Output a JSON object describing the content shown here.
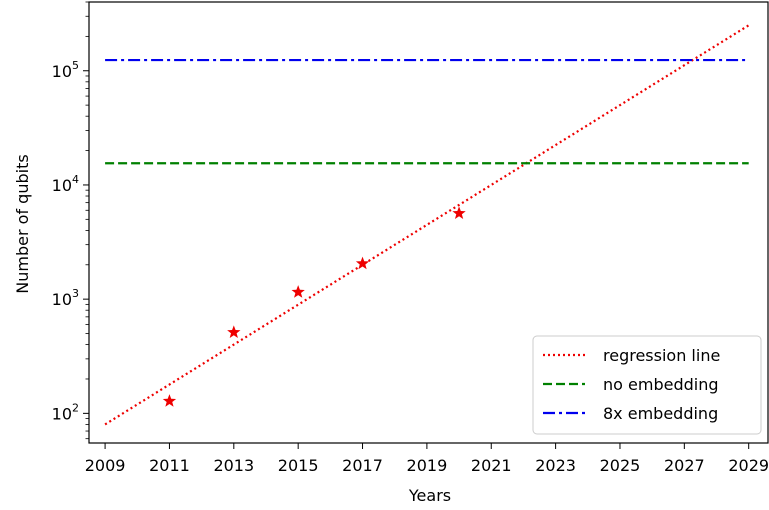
{
  "chart_data": {
    "type": "line",
    "title": "",
    "xlabel": "Years",
    "ylabel": "Number of qubits",
    "xlim": [
      2008.5,
      2029.6
    ],
    "ylim": [
      55,
      400000
    ],
    "yscale": "log",
    "grid": false,
    "legend_position": "bottom-right",
    "xticks": [
      {
        "value": 2009,
        "label": "2009"
      },
      {
        "value": 2011,
        "label": "2011"
      },
      {
        "value": 2013,
        "label": "2013"
      },
      {
        "value": 2015,
        "label": "2015"
      },
      {
        "value": 2017,
        "label": "2017"
      },
      {
        "value": 2019,
        "label": "2019"
      },
      {
        "value": 2021,
        "label": "2021"
      },
      {
        "value": 2023,
        "label": "2023"
      },
      {
        "value": 2025,
        "label": "2025"
      },
      {
        "value": 2027,
        "label": "2027"
      },
      {
        "value": 2029,
        "label": "2029"
      }
    ],
    "yticks": [
      {
        "value": 100,
        "base": "10",
        "exp": "2"
      },
      {
        "value": 1000,
        "base": "10",
        "exp": "3"
      },
      {
        "value": 10000,
        "base": "10",
        "exp": "4"
      },
      {
        "value": 100000,
        "base": "10",
        "exp": "5"
      }
    ],
    "points": {
      "name": "",
      "color": "#ee0000",
      "marker": "star",
      "x": [
        2011,
        2013,
        2015,
        2017,
        2020
      ],
      "y": [
        128,
        512,
        1152,
        2048,
        5640
      ]
    },
    "series": [
      {
        "name": "regression line",
        "color": "#ee0000",
        "style": "dotted",
        "x": [
          2009,
          2029
        ],
        "y": [
          80,
          250000
        ]
      },
      {
        "name": "no embedding",
        "color": "#008000",
        "style": "dashed",
        "x": [
          2009,
          2029
        ],
        "y": [
          15500,
          15500
        ]
      },
      {
        "name": "8x embedding",
        "color": "#0000ee",
        "style": "dashdot",
        "x": [
          2009,
          2029
        ],
        "y": [
          124000,
          124000
        ]
      }
    ]
  }
}
